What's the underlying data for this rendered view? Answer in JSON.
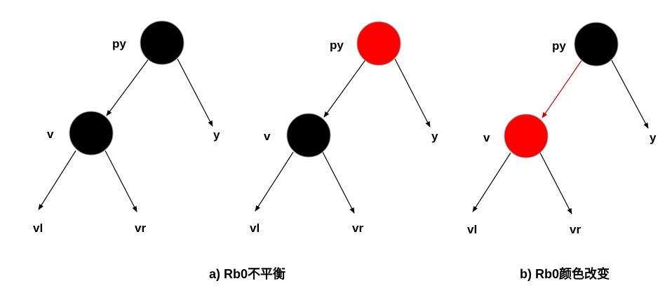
{
  "colors": {
    "black": "#000000",
    "red": "#ff0000",
    "edge": "#000000",
    "edge_red": "#cc0000"
  },
  "diagrams": [
    {
      "labels": {
        "py": "py",
        "v": "v",
        "y": "y",
        "vl": "vl",
        "vr": "vr"
      },
      "py_color": "black",
      "v_color": "black",
      "py_v_edge_color": "edge"
    },
    {
      "labels": {
        "py": "py",
        "v": "v",
        "y": "y",
        "vl": "vl",
        "vr": "vr"
      },
      "py_color": "red",
      "v_color": "black",
      "py_v_edge_color": "edge"
    },
    {
      "labels": {
        "py": "py",
        "v": "v",
        "y": "y",
        "vl": "vl",
        "vr": "vr"
      },
      "py_color": "black",
      "v_color": "red",
      "py_v_edge_color": "edge_red"
    }
  ],
  "captions": {
    "a": "a) Rb0不平衡",
    "b": "b) Rb0颜色改变"
  }
}
